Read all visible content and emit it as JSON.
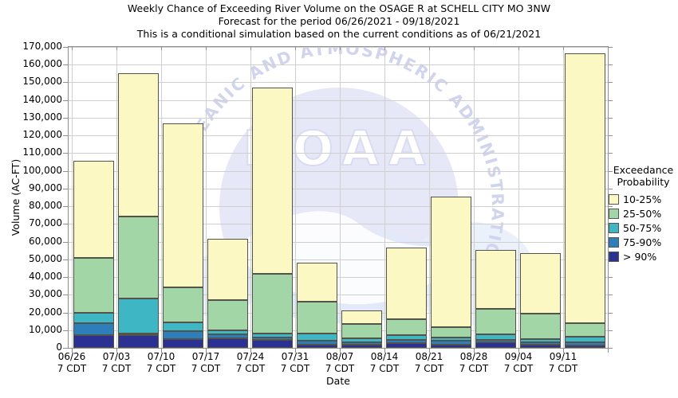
{
  "title": {
    "line1": "Weekly Chance of Exceeding River Volume on the OSAGE R at SCHELL CITY MO 3NW",
    "line2": "Forecast for the period 06/26/2021 - 09/18/2021",
    "line3": "This is a conditional simulation based on the current conditions as of 06/21/2021"
  },
  "y_axis": {
    "label": "Volume (AC-FT)",
    "ticks": [
      "0",
      "10,000",
      "20,000",
      "30,000",
      "40,000",
      "50,000",
      "60,000",
      "70,000",
      "80,000",
      "90,000",
      "100,000",
      "110,000",
      "120,000",
      "130,000",
      "140,000",
      "150,000",
      "160,000",
      "170,000"
    ]
  },
  "x_axis": {
    "label": "Date",
    "ticks": [
      {
        "date": "06/26",
        "time": "7 CDT"
      },
      {
        "date": "07/03",
        "time": "7 CDT"
      },
      {
        "date": "07/10",
        "time": "7 CDT"
      },
      {
        "date": "07/17",
        "time": "7 CDT"
      },
      {
        "date": "07/24",
        "time": "7 CDT"
      },
      {
        "date": "07/31",
        "time": "7 CDT"
      },
      {
        "date": "08/07",
        "time": "7 CDT"
      },
      {
        "date": "08/14",
        "time": "7 CDT"
      },
      {
        "date": "08/21",
        "time": "7 CDT"
      },
      {
        "date": "08/28",
        "time": "7 CDT"
      },
      {
        "date": "09/04",
        "time": "7 CDT"
      },
      {
        "date": "09/11",
        "time": "7 CDT"
      }
    ]
  },
  "legend": {
    "title_line1": "Exceedance",
    "title_line2": "Probability",
    "items": [
      {
        "label": "10-25%",
        "color": "#FBF8C4"
      },
      {
        "label": "25-50%",
        "color": "#A3D6A6"
      },
      {
        "label": "50-75%",
        "color": "#3FB6C4"
      },
      {
        "label": "75-90%",
        "color": "#2E7EBB"
      },
      {
        "label": "> 90%",
        "color": "#2A3192"
      }
    ]
  },
  "watermark": {
    "ring_text": "NATIONAL OCEANIC AND ATMOSPHERIC ADMINISTRATION",
    "center_text": "NOAA"
  },
  "colors": {
    "grid": "#cfcfcf",
    "frame": "#8f8f8f",
    "bar_edge": "#53534a",
    "watermark_circle": "#d7daf2",
    "watermark_ring_text": "#c9cdec",
    "watermark_blue": "#dde7f8"
  },
  "chart_data": {
    "type": "bar",
    "stacked": true,
    "title": "Weekly Chance of Exceeding River Volume on the OSAGE R at SCHELL CITY MO 3NW",
    "xlabel": "Date",
    "ylabel": "Volume (AC-FT)",
    "ylim": [
      0,
      170000
    ],
    "grid": true,
    "legend_position": "right",
    "categories": [
      "06/26",
      "07/03",
      "07/10",
      "07/17",
      "07/24",
      "07/31",
      "08/07",
      "08/14",
      "08/21",
      "08/28",
      "09/04",
      "09/11"
    ],
    "series": [
      {
        "name": "> 90%",
        "key": "gt90",
        "color": "#2A3192",
        "values": [
          7000,
          7000,
          5000,
          5500,
          4500,
          2000,
          2000,
          2500,
          2000,
          3000,
          2000,
          1500
        ]
      },
      {
        "name": "75-90%",
        "key": "p75-90",
        "color": "#2E7EBB",
        "values": [
          7000,
          1000,
          4500,
          2000,
          1500,
          2000,
          1000,
          2000,
          2000,
          1500,
          1000,
          1500
        ]
      },
      {
        "name": "50-75%",
        "key": "p50-75",
        "color": "#3FB6C4",
        "values": [
          6000,
          20000,
          5000,
          2500,
          2000,
          4000,
          2500,
          2500,
          2000,
          3000,
          2000,
          3500
        ]
      },
      {
        "name": "25-50%",
        "key": "p25-50",
        "color": "#A3D6A6",
        "values": [
          31000,
          46000,
          19500,
          17000,
          34000,
          18000,
          8000,
          9000,
          5500,
          14500,
          14500,
          7500
        ]
      },
      {
        "name": "10-25%",
        "key": "p10-25",
        "color": "#FBF8C4",
        "values": [
          54500,
          81000,
          93000,
          34500,
          105000,
          22000,
          7500,
          40500,
          74000,
          33500,
          34000,
          152500
        ]
      }
    ],
    "totals": [
      105500,
      155000,
      127000,
      61500,
      147000,
      48000,
      21000,
      56500,
      85500,
      55500,
      53500,
      166500
    ]
  }
}
